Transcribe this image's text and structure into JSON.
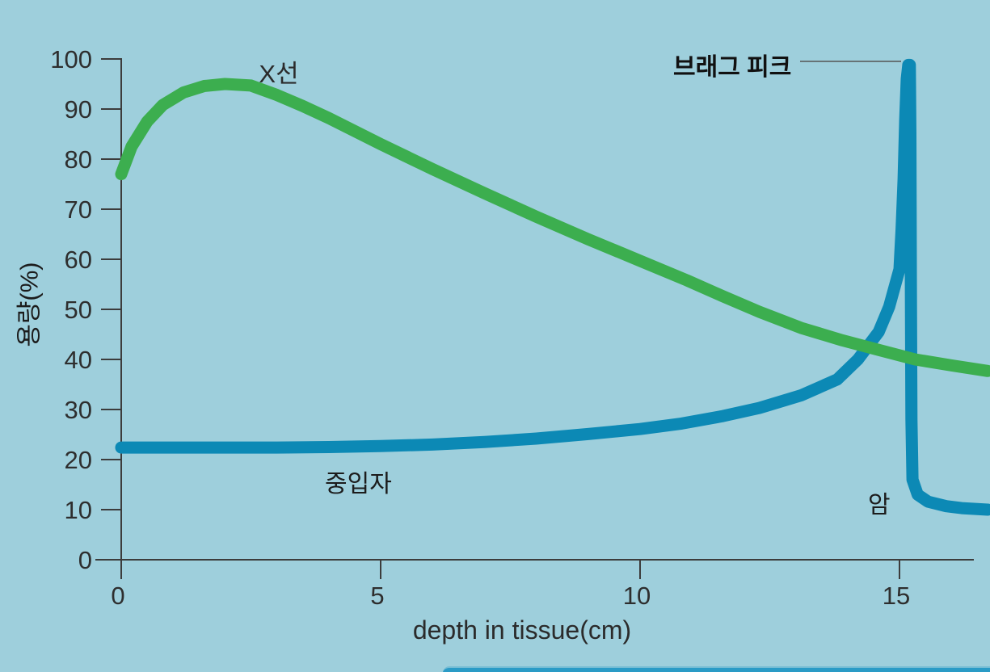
{
  "labels": {
    "x_ray_curve": "X선",
    "particle_curve": "중입자",
    "bragg_peak": "브래그 피크",
    "cancer": "암",
    "x_axis_title": "depth in tissue(cm)",
    "y_axis_title": "용량(%)"
  },
  "colors": {
    "background": "#9ecfdc",
    "xray_curve": "#3cae4f",
    "particle_curve": "#0c89b5",
    "axis": "#3c3c3c",
    "leader_line": "#555555",
    "bottom_strip": "#2a9bc6"
  },
  "chart_data": {
    "type": "line",
    "title": "",
    "xlabel": "depth in tissue(cm)",
    "ylabel": "용량(%)",
    "xlim": [
      0,
      16.7
    ],
    "ylim": [
      0,
      100
    ],
    "x_ticks": [
      0,
      5,
      10,
      15
    ],
    "y_ticks": [
      0,
      10,
      20,
      30,
      40,
      50,
      60,
      70,
      80,
      90,
      100
    ],
    "grid": false,
    "legend_position": "inline-annotations",
    "series": [
      {
        "id": "particle",
        "name": "중입자",
        "color": "#0c89b5",
        "points": [
          [
            0,
            22.4
          ],
          [
            1,
            22.4
          ],
          [
            2,
            22.4
          ],
          [
            3,
            22.4
          ],
          [
            4,
            22.5
          ],
          [
            5,
            22.7
          ],
          [
            6,
            23.0
          ],
          [
            7,
            23.5
          ],
          [
            8,
            24.2
          ],
          [
            9,
            25.1
          ],
          [
            10,
            26.1
          ],
          [
            10.8,
            27.2
          ],
          [
            11.6,
            28.7
          ],
          [
            12.3,
            30.3
          ],
          [
            13.1,
            32.8
          ],
          [
            13.8,
            36.0
          ],
          [
            14.2,
            40.0
          ],
          [
            14.6,
            45.5
          ],
          [
            14.8,
            50.5
          ],
          [
            15.0,
            58.0
          ],
          [
            15.04,
            66.0
          ],
          [
            15.08,
            76.0
          ],
          [
            15.11,
            88.0
          ],
          [
            15.14,
            96.0
          ],
          [
            15.17,
            98.8
          ],
          [
            15.2,
            98.8
          ],
          [
            15.21,
            85.0
          ],
          [
            15.22,
            55.0
          ],
          [
            15.23,
            28.0
          ],
          [
            15.25,
            16.0
          ],
          [
            15.35,
            13.0
          ],
          [
            15.55,
            11.6
          ],
          [
            15.9,
            10.7
          ],
          [
            16.2,
            10.3
          ],
          [
            16.7,
            10.0
          ]
        ]
      },
      {
        "id": "xray",
        "name": "X선",
        "color": "#3cae4f",
        "points": [
          [
            0,
            77.0
          ],
          [
            0.2,
            82.5
          ],
          [
            0.5,
            87.5
          ],
          [
            0.8,
            90.8
          ],
          [
            1.2,
            93.3
          ],
          [
            1.6,
            94.6
          ],
          [
            2.0,
            95.0
          ],
          [
            2.5,
            94.7
          ],
          [
            3.0,
            92.8
          ],
          [
            3.5,
            90.6
          ],
          [
            4.0,
            88.2
          ],
          [
            5.0,
            83.0
          ],
          [
            6.0,
            78.0
          ],
          [
            7.0,
            73.2
          ],
          [
            8.0,
            68.5
          ],
          [
            9.0,
            64.0
          ],
          [
            10.0,
            59.7
          ],
          [
            10.9,
            55.8
          ],
          [
            11.6,
            52.6
          ],
          [
            12.3,
            49.5
          ],
          [
            13.1,
            46.3
          ],
          [
            13.9,
            43.8
          ],
          [
            14.6,
            41.9
          ],
          [
            15.3,
            40.0
          ],
          [
            16.0,
            38.8
          ],
          [
            16.7,
            37.7
          ]
        ]
      }
    ],
    "annotations": [
      {
        "text": "X선",
        "target": "xray curve near its peak",
        "x": 3.0,
        "y": 98
      },
      {
        "text": "중입자",
        "target": "particle curve flat region",
        "x": 4.3,
        "y": 17
      },
      {
        "text": "브래그 피크",
        "target": "particle curve spike top",
        "x": 15.17,
        "y": 99.5,
        "leader_line": true
      },
      {
        "text": "암",
        "target": "particle curve falloff",
        "x": 14.5,
        "y": 12
      }
    ]
  }
}
